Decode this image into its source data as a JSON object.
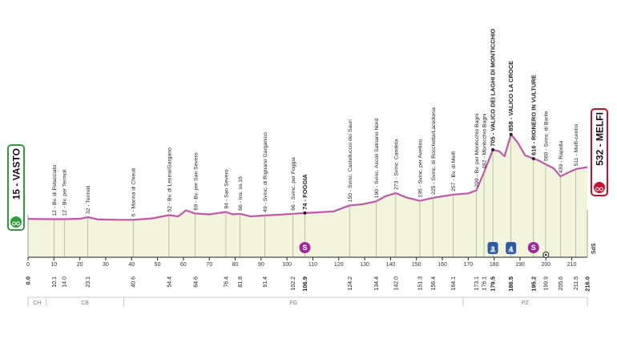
{
  "chart_data": {
    "type": "area",
    "xlim": [
      0,
      216
    ],
    "x_ticks": [
      0,
      10,
      20,
      30,
      40,
      50,
      60,
      70,
      80,
      90,
      100,
      110,
      120,
      130,
      140,
      150,
      160,
      170,
      180,
      190,
      200,
      210
    ],
    "profile": [
      {
        "x": 0,
        "y": 15
      },
      {
        "x": 5,
        "y": 13
      },
      {
        "x": 10.1,
        "y": 12
      },
      {
        "x": 14.0,
        "y": 12
      },
      {
        "x": 20,
        "y": 16
      },
      {
        "x": 23.1,
        "y": 32
      },
      {
        "x": 27,
        "y": 10
      },
      {
        "x": 35,
        "y": 6
      },
      {
        "x": 40.6,
        "y": 6
      },
      {
        "x": 48,
        "y": 20
      },
      {
        "x": 54.4,
        "y": 52
      },
      {
        "x": 58,
        "y": 40
      },
      {
        "x": 61,
        "y": 100
      },
      {
        "x": 64.6,
        "y": 69
      },
      {
        "x": 70,
        "y": 60
      },
      {
        "x": 76.4,
        "y": 84
      },
      {
        "x": 79,
        "y": 60
      },
      {
        "x": 81.8,
        "y": 66
      },
      {
        "x": 86,
        "y": 40
      },
      {
        "x": 91.4,
        "y": 49
      },
      {
        "x": 96,
        "y": 55
      },
      {
        "x": 102.2,
        "y": 66
      },
      {
        "x": 106.9,
        "y": 74
      },
      {
        "x": 112,
        "y": 80
      },
      {
        "x": 118,
        "y": 90
      },
      {
        "x": 124.2,
        "y": 150
      },
      {
        "x": 129,
        "y": 160
      },
      {
        "x": 134.4,
        "y": 190
      },
      {
        "x": 138,
        "y": 240
      },
      {
        "x": 142.0,
        "y": 273
      },
      {
        "x": 146,
        "y": 230
      },
      {
        "x": 151.3,
        "y": 195
      },
      {
        "x": 156.4,
        "y": 225
      },
      {
        "x": 160,
        "y": 240
      },
      {
        "x": 164.1,
        "y": 257
      },
      {
        "x": 170,
        "y": 270
      },
      {
        "x": 173.1,
        "y": 299
      },
      {
        "x": 176.1,
        "y": 482
      },
      {
        "x": 179.5,
        "y": 705
      },
      {
        "x": 182,
        "y": 690
      },
      {
        "x": 184,
        "y": 640
      },
      {
        "x": 186.5,
        "y": 858
      },
      {
        "x": 189,
        "y": 780
      },
      {
        "x": 192,
        "y": 650
      },
      {
        "x": 195.2,
        "y": 616
      },
      {
        "x": 197,
        "y": 600
      },
      {
        "x": 199.9,
        "y": 560
      },
      {
        "x": 203,
        "y": 520
      },
      {
        "x": 205.6,
        "y": 439
      },
      {
        "x": 208,
        "y": 470
      },
      {
        "x": 211.5,
        "y": 511
      },
      {
        "x": 216,
        "y": 532
      }
    ],
    "km_labels": [
      "0.0",
      "10.1",
      "14.0",
      "23.1",
      "40.6",
      "54.4",
      "64.6",
      "76.4",
      "81.8",
      "91.4",
      "102.2",
      "106.9",
      "124.2",
      "134.4",
      "142.0",
      "151.3",
      "156.4",
      "164.1",
      "173.1",
      "176.1",
      "179.5",
      "186.5",
      "195.2",
      "199.9",
      "205.6",
      "211.5",
      "216.0"
    ],
    "km_bold": [
      "0.0",
      "106.9",
      "179.5",
      "186.5",
      "195.2",
      "216.0"
    ],
    "waypoints": [
      {
        "km": 10.1,
        "label": "12 - Bv. di Petacciato"
      },
      {
        "km": 14.0,
        "label": "12 - Bv. per Termoli"
      },
      {
        "km": 23.1,
        "label": "32 - Termoli"
      },
      {
        "km": 40.6,
        "label": "6 - Marina di Chieuti"
      },
      {
        "km": 54.4,
        "label": "52 - Bv. di Lesina/Gargano"
      },
      {
        "km": 64.6,
        "label": "69 - Bv. per San Severo"
      },
      {
        "km": 76.4,
        "label": "84 - San Severo"
      },
      {
        "km": 81.8,
        "label": "66 - Ins. ss.16"
      },
      {
        "km": 91.4,
        "label": "49 - Svinc. di Rignano Garganico"
      },
      {
        "km": 102.2,
        "label": "66 - Svinc. per Foggia"
      },
      {
        "km": 106.9,
        "label": "74 - FOGGIA",
        "bold": true
      },
      {
        "km": 124.2,
        "label": "150 - Svinc. Castelluccio dei Sauri"
      },
      {
        "km": 134.4,
        "label": "190 - Svinc. Ascoli Satriano Nord"
      },
      {
        "km": 142.0,
        "label": "273 - Svinc. Candela"
      },
      {
        "km": 151.3,
        "label": "195 - Svinc. per Avellino"
      },
      {
        "km": 156.4,
        "label": "225 - Svinc. di Rocchetta/Lacedonia"
      },
      {
        "km": 164.1,
        "label": "257 - Bv. di Melfi"
      },
      {
        "km": 173.1,
        "label": "299 - Bv. per Monticchio Bagni"
      },
      {
        "km": 176.1,
        "label": "482 - Monticchio Bagni"
      },
      {
        "km": 179.5,
        "label": "705 - VALICO DEI LAGHI DI MONTICCHIO",
        "bold": true
      },
      {
        "km": 186.5,
        "label": "858 - VALICO LA CROCE",
        "bold": true
      },
      {
        "km": 195.2,
        "label": "616 - RIONERO IN VULTURE",
        "bold": true
      },
      {
        "km": 199.9,
        "label": "560 - Svinc. di Barile"
      },
      {
        "km": 205.6,
        "label": "439 - Rapolla"
      },
      {
        "km": 211.5,
        "label": "511 - Melfi-centro"
      }
    ],
    "start": {
      "label": "15 - VASTO",
      "color": "#2e9e3c"
    },
    "finish": {
      "label": "532 - MELFI",
      "color": "#c8102e"
    },
    "climbs": [
      {
        "km": 179.5,
        "label": "3"
      },
      {
        "km": 186.5,
        "label": "4"
      }
    ],
    "sprints": [
      {
        "km": 106.9,
        "label": "S"
      },
      {
        "km": 195.2,
        "label": "S"
      }
    ],
    "regions": [
      {
        "label": "CH",
        "from": 0,
        "to": 7
      },
      {
        "label": "CB",
        "from": 7,
        "to": 37
      },
      {
        "label": "FG",
        "from": 37,
        "to": 168
      },
      {
        "label": "PZ",
        "from": 168,
        "to": 216
      }
    ],
    "side_label": "SdS",
    "colors": {
      "fill": "#f2f4dc",
      "line": "#c058a8",
      "climb": "#2c5aa6",
      "sprint": "#a0279b"
    }
  }
}
